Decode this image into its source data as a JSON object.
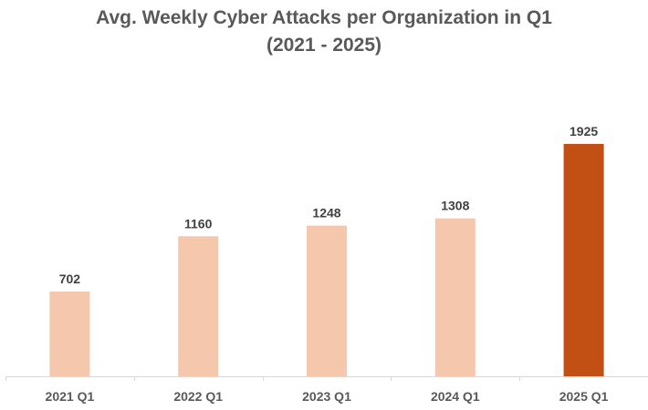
{
  "chart_data": {
    "type": "bar",
    "title": [
      "Avg. Weekly Cyber Attacks per Organization in Q1",
      "(2021 - 2025)"
    ],
    "categories": [
      "2021 Q1",
      "2022 Q1",
      "2023 Q1",
      "2024 Q1",
      "2025 Q1"
    ],
    "values": [
      702,
      1160,
      1248,
      1308,
      1925
    ],
    "data_labels": [
      "702",
      "1160",
      "1248",
      "1308",
      "1925"
    ],
    "xlabel": "",
    "ylabel": "",
    "ylim": [
      0,
      2400
    ],
    "grid": false,
    "legend": "none",
    "colors": {
      "default": "#F5C7AC",
      "highlight": "#C25015",
      "highlight_index": 4,
      "axis": "#D9D9D9",
      "label": "#404040",
      "title": "#595959"
    }
  }
}
